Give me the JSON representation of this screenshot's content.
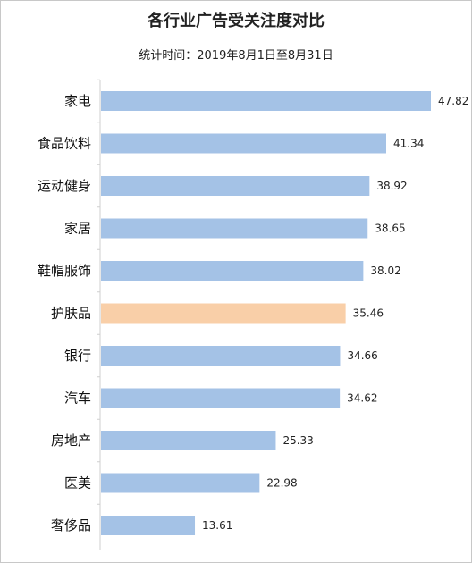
{
  "chart_data": {
    "type": "bar",
    "orientation": "horizontal",
    "title": "各行业广告受关注度对比",
    "subtitle": "统计时间：2019年8月1日至8月31日",
    "categories": [
      "家电",
      "食品饮料",
      "运动健身",
      "家居",
      "鞋帽服饰",
      "护肤品",
      "银行",
      "汽车",
      "房地产",
      "医美",
      "奢侈品"
    ],
    "values": [
      47.82,
      41.34,
      38.92,
      38.65,
      38.02,
      35.46,
      34.66,
      34.62,
      25.33,
      22.98,
      13.61
    ],
    "value_labels": [
      "47.82",
      "41.34",
      "38.92",
      "38.65",
      "38.02",
      "35.46",
      "34.66",
      "34.62",
      "25.33",
      "22.98",
      "13.61"
    ],
    "highlight_category": "护肤品",
    "colors": {
      "bar": "#a4c2e6",
      "highlight": "#f9cfa8",
      "axis": "#cfcfcf"
    },
    "xlim": [
      0,
      47.82
    ],
    "grid": false
  }
}
